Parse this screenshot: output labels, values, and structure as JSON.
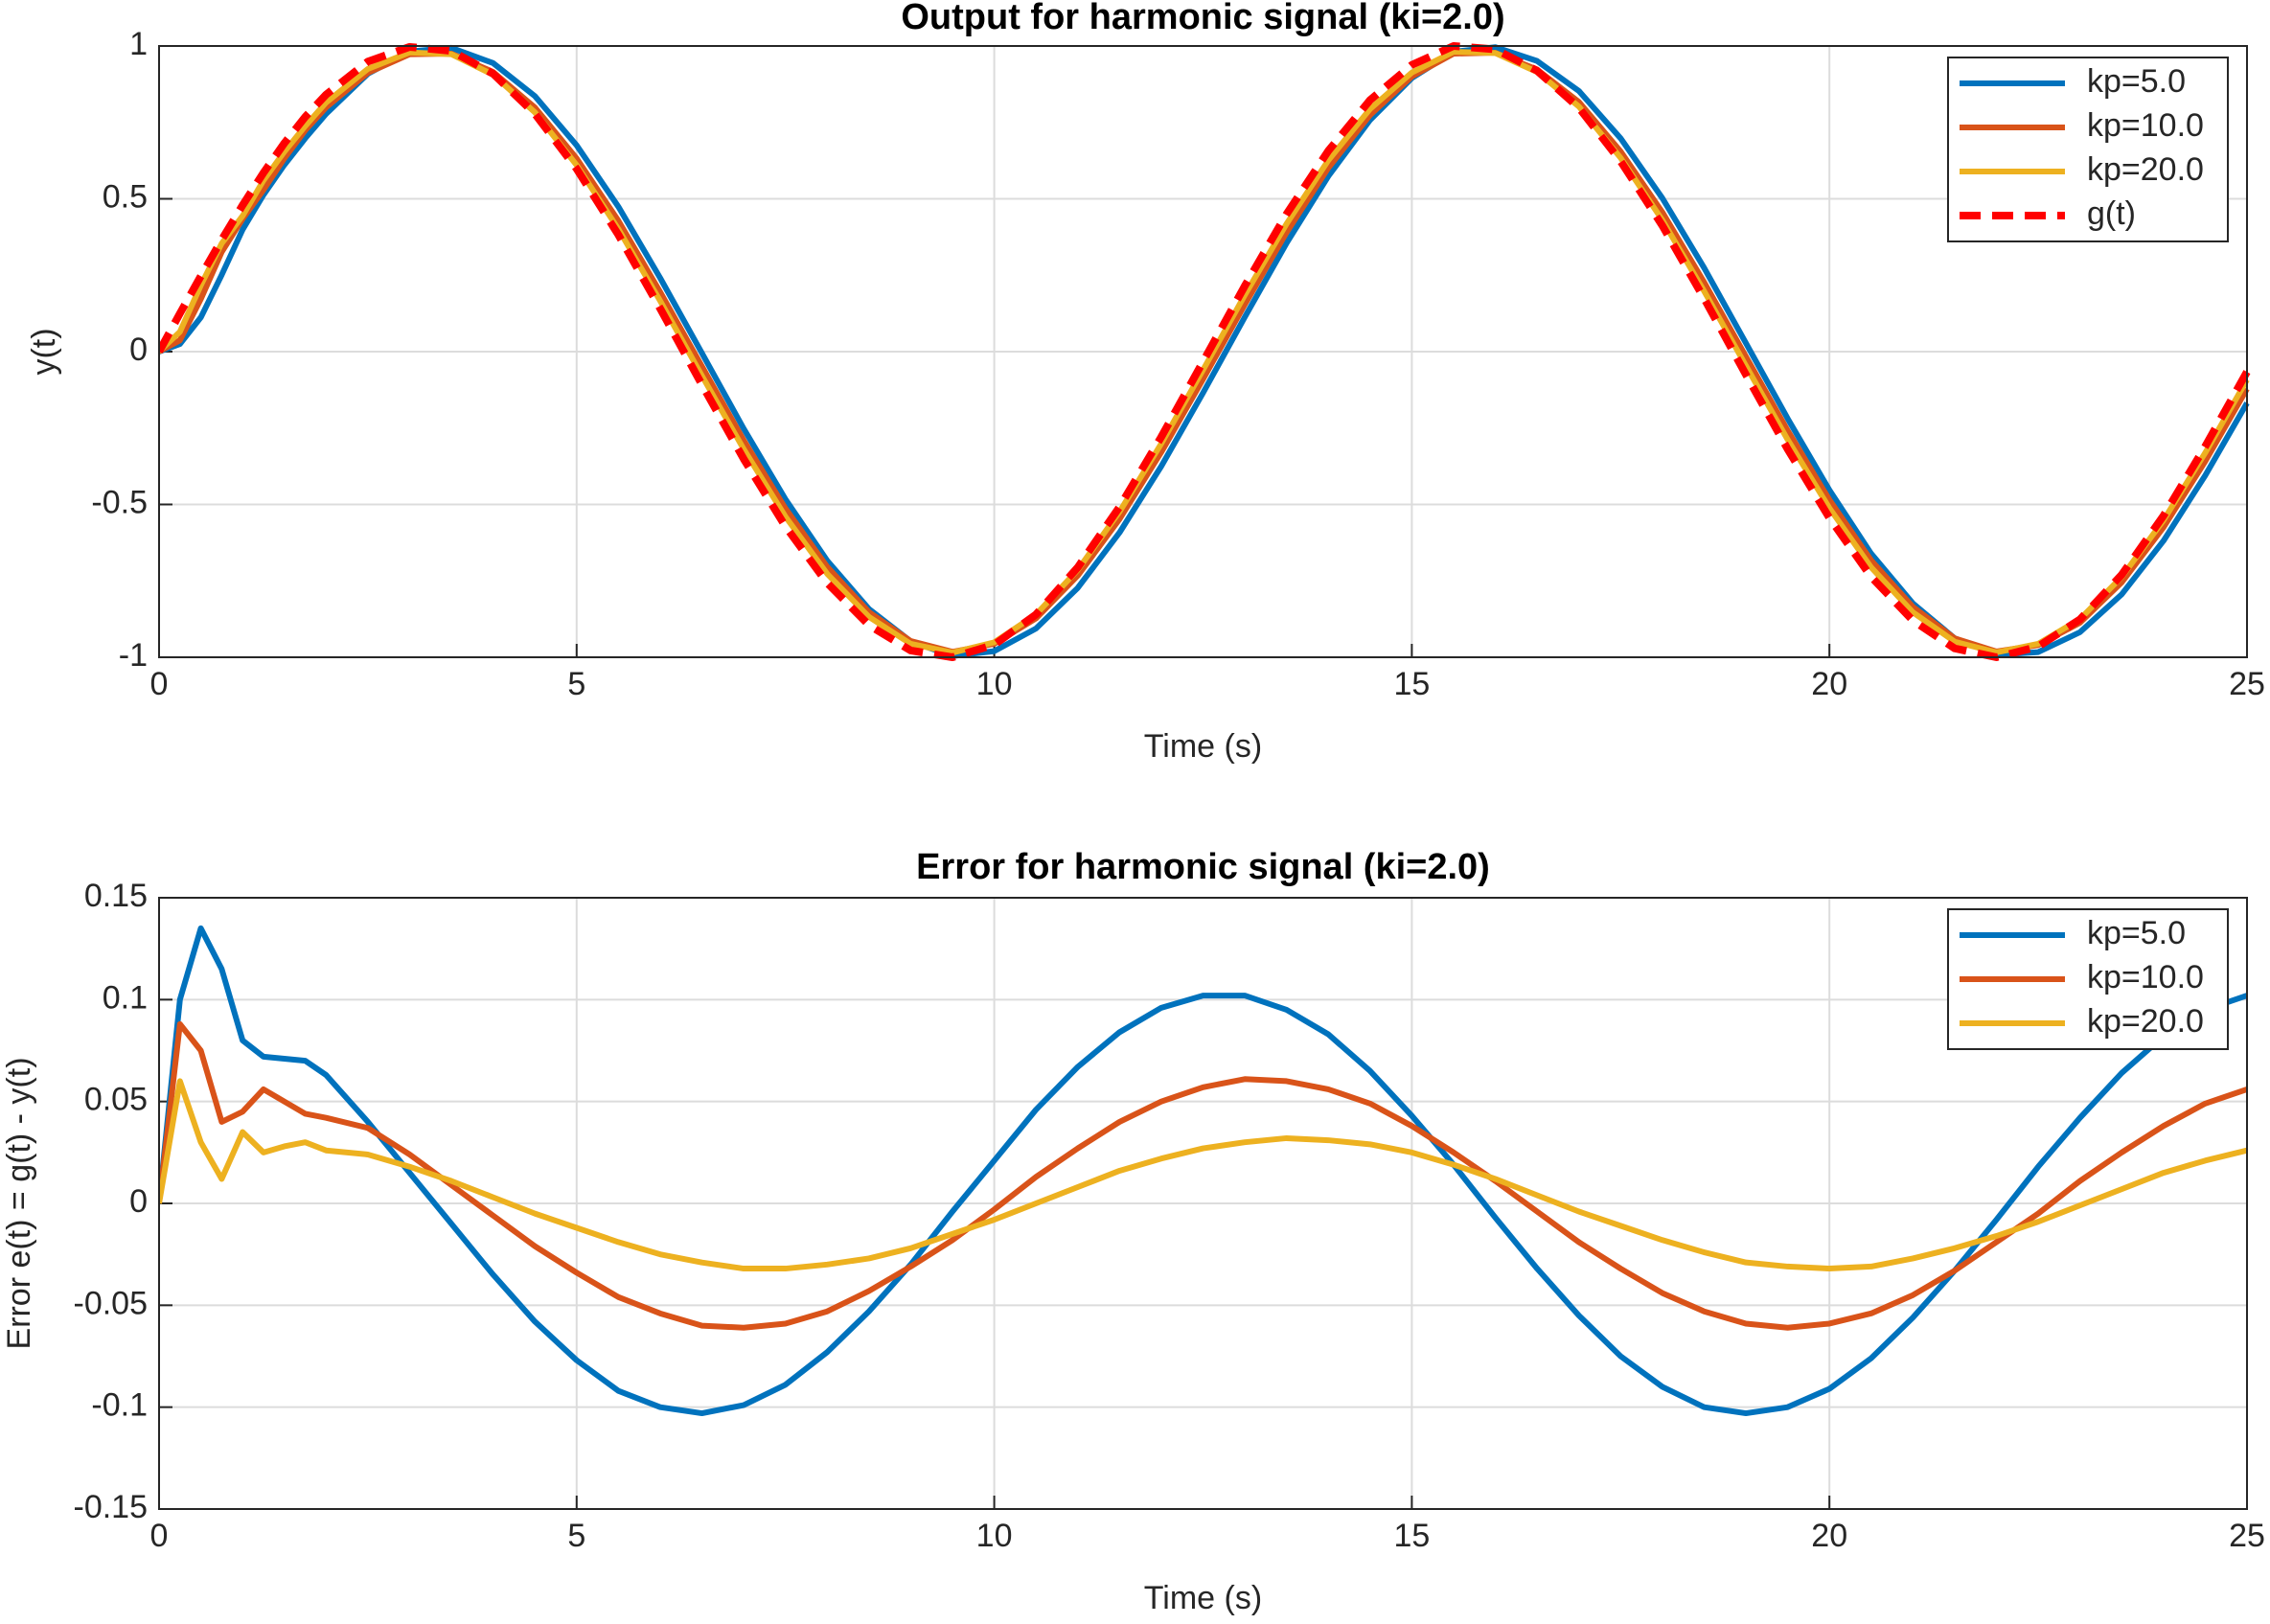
{
  "chart_data": [
    {
      "type": "line",
      "title": "Output for harmonic signal (ki=2.0)",
      "xlabel": "Time (s)",
      "ylabel": "y(t)",
      "x": [
        0,
        0.25,
        0.5,
        0.75,
        1,
        1.25,
        1.5,
        1.75,
        2,
        2.5,
        3,
        3.5,
        4,
        4.5,
        5,
        5.5,
        6,
        6.5,
        7,
        7.5,
        8,
        8.5,
        9,
        9.5,
        10,
        10.5,
        11,
        11.5,
        12,
        12.5,
        13,
        13.5,
        14,
        14.5,
        15,
        15.5,
        16,
        16.5,
        17,
        17.5,
        18,
        18.5,
        19,
        19.5,
        20,
        20.5,
        21,
        21.5,
        22,
        22.5,
        23,
        23.5,
        24,
        24.5,
        25
      ],
      "series": [
        {
          "name": "kp=5.0",
          "color": "#0072BD",
          "line_style": "solid",
          "values": [
            0,
            0.025,
            0.112,
            0.251,
            0.399,
            0.513,
            0.611,
            0.698,
            0.778,
            0.909,
            0.982,
            0.994,
            0.944,
            0.836,
            0.675,
            0.474,
            0.241,
            -0.005,
            -0.252,
            -0.483,
            -0.684,
            -0.842,
            -0.948,
            -0.996,
            -0.98,
            -0.906,
            -0.773,
            -0.592,
            -0.375,
            -0.135,
            0.113,
            0.355,
            0.574,
            0.758,
            0.895,
            0.981,
            0.996,
            0.951,
            0.853,
            0.698,
            0.502,
            0.274,
            0.028,
            -0.219,
            -0.453,
            -0.661,
            -0.824,
            -0.938,
            -0.992,
            -0.983,
            -0.918,
            -0.794,
            -0.619,
            -0.405,
            -0.168
          ]
        },
        {
          "name": "kp=10.0",
          "color": "#D95319",
          "line_style": "solid",
          "values": [
            0,
            0.037,
            0.172,
            0.326,
            0.434,
            0.529,
            0.632,
            0.724,
            0.799,
            0.912,
            0.973,
            0.975,
            0.915,
            0.799,
            0.632,
            0.428,
            0.195,
            -0.048,
            -0.29,
            -0.513,
            -0.704,
            -0.852,
            -0.947,
            -0.982,
            -0.956,
            -0.873,
            -0.733,
            -0.548,
            -0.329,
            -0.09,
            0.154,
            0.39,
            0.601,
            0.774,
            0.9,
            0.975,
            0.978,
            0.923,
            0.817,
            0.655,
            0.456,
            0.227,
            -0.016,
            -0.258,
            -0.485,
            -0.683,
            -0.835,
            -0.938,
            -0.981,
            -0.96,
            -0.887,
            -0.755,
            -0.575,
            -0.359,
            -0.122
          ]
        },
        {
          "name": "kp=20.0",
          "color": "#EDB120",
          "line_style": "solid",
          "values": [
            0,
            0.065,
            0.217,
            0.354,
            0.444,
            0.56,
            0.654,
            0.738,
            0.815,
            0.925,
            0.979,
            0.973,
            0.906,
            0.783,
            0.61,
            0.401,
            0.166,
            -0.079,
            -0.319,
            -0.54,
            -0.727,
            -0.868,
            -0.956,
            -0.985,
            -0.951,
            -0.86,
            -0.714,
            -0.524,
            -0.301,
            -0.06,
            0.185,
            0.418,
            0.626,
            0.794,
            0.913,
            0.981,
            0.977,
            0.915,
            0.802,
            0.634,
            0.43,
            0.198,
            -0.046,
            -0.288,
            -0.512,
            -0.706,
            -0.853,
            -0.949,
            -0.984,
            -0.956,
            -0.875,
            -0.737,
            -0.552,
            -0.331,
            -0.092
          ]
        },
        {
          "name": "g(t)",
          "color": "#FF0000",
          "line_style": "dashed",
          "values": [
            0,
            0.125,
            0.247,
            0.366,
            0.479,
            0.585,
            0.682,
            0.768,
            0.841,
            0.949,
            0.997,
            0.984,
            0.909,
            0.778,
            0.598,
            0.382,
            0.141,
            -0.108,
            -0.351,
            -0.572,
            -0.757,
            -0.895,
            -0.978,
            -1,
            -0.959,
            -0.86,
            -0.706,
            -0.508,
            -0.279,
            -0.033,
            0.215,
            0.45,
            0.657,
            0.823,
            0.938,
            1,
            0.989,
            0.919,
            0.798,
            0.623,
            0.412,
            0.174,
            -0.075,
            -0.319,
            -0.544,
            -0.737,
            -0.88,
            -0.971,
            -1,
            -0.965,
            -0.876,
            -0.73,
            -0.537,
            -0.31,
            -0.066
          ]
        }
      ],
      "xlim": [
        0,
        25
      ],
      "xticks": [
        0,
        5,
        10,
        15,
        20,
        25
      ],
      "ylim": [
        -1,
        1
      ],
      "yticks": [
        -1,
        -0.5,
        0,
        0.5,
        1
      ],
      "grid": true,
      "legend": "northeast"
    },
    {
      "type": "line",
      "title": "Error for harmonic signal (ki=2.0)",
      "xlabel": "Time (s)",
      "ylabel": "Error e(t) = g(t) - y(t)",
      "x": [
        0,
        0.25,
        0.5,
        0.75,
        1,
        1.25,
        1.5,
        1.75,
        2,
        2.5,
        3,
        3.5,
        4,
        4.5,
        5,
        5.5,
        6,
        6.5,
        7,
        7.5,
        8,
        8.5,
        9,
        9.5,
        10,
        10.5,
        11,
        11.5,
        12,
        12.5,
        13,
        13.5,
        14,
        14.5,
        15,
        15.5,
        16,
        16.5,
        17,
        17.5,
        18,
        18.5,
        19,
        19.5,
        20,
        20.5,
        21,
        21.5,
        22,
        22.5,
        23,
        23.5,
        24,
        24.5,
        25
      ],
      "series": [
        {
          "name": "kp=5.0",
          "color": "#0072BD",
          "line_style": "solid",
          "values": [
            0,
            0.1,
            0.135,
            0.115,
            0.08,
            0.072,
            0.071,
            0.07,
            0.063,
            0.04,
            0.015,
            -0.01,
            -0.035,
            -0.058,
            -0.077,
            -0.092,
            -0.1,
            -0.103,
            -0.099,
            -0.089,
            -0.073,
            -0.053,
            -0.03,
            -0.004,
            0.021,
            0.046,
            0.067,
            0.084,
            0.096,
            0.102,
            0.102,
            0.095,
            0.083,
            0.065,
            0.043,
            0.019,
            -0.007,
            -0.032,
            -0.055,
            -0.075,
            -0.09,
            -0.1,
            -0.103,
            -0.1,
            -0.091,
            -0.076,
            -0.056,
            -0.033,
            -0.008,
            0.018,
            0.042,
            0.064,
            0.082,
            0.095,
            0.102
          ]
        },
        {
          "name": "kp=10.0",
          "color": "#D95319",
          "line_style": "solid",
          "values": [
            0,
            0.088,
            0.075,
            0.04,
            0.045,
            0.056,
            0.05,
            0.044,
            0.042,
            0.037,
            0.024,
            0.009,
            -0.006,
            -0.021,
            -0.034,
            -0.046,
            -0.054,
            -0.06,
            -0.061,
            -0.059,
            -0.053,
            -0.043,
            -0.031,
            -0.018,
            -0.003,
            0.013,
            0.027,
            0.04,
            0.05,
            0.057,
            0.061,
            0.06,
            0.056,
            0.049,
            0.038,
            0.025,
            0.011,
            -0.004,
            -0.019,
            -0.032,
            -0.044,
            -0.053,
            -0.059,
            -0.061,
            -0.059,
            -0.054,
            -0.045,
            -0.033,
            -0.019,
            -0.005,
            0.011,
            0.025,
            0.038,
            0.049,
            0.056
          ]
        },
        {
          "name": "kp=20.0",
          "color": "#EDB120",
          "line_style": "solid",
          "values": [
            0,
            0.06,
            0.03,
            0.012,
            0.035,
            0.025,
            0.028,
            0.03,
            0.026,
            0.024,
            0.018,
            0.011,
            0.003,
            -0.005,
            -0.012,
            -0.019,
            -0.025,
            -0.029,
            -0.032,
            -0.032,
            -0.03,
            -0.027,
            -0.022,
            -0.015,
            -0.008,
            0,
            0.008,
            0.016,
            0.022,
            0.027,
            0.03,
            0.032,
            0.031,
            0.029,
            0.025,
            0.019,
            0.012,
            0.004,
            -0.004,
            -0.011,
            -0.018,
            -0.024,
            -0.029,
            -0.031,
            -0.032,
            -0.031,
            -0.027,
            -0.022,
            -0.016,
            -0.009,
            -0.001,
            0.007,
            0.015,
            0.021,
            0.026
          ]
        }
      ],
      "xlim": [
        0,
        25
      ],
      "xticks": [
        0,
        5,
        10,
        15,
        20,
        25
      ],
      "ylim": [
        -0.15,
        0.15
      ],
      "yticks": [
        -0.15,
        -0.1,
        -0.05,
        0,
        0.05,
        0.1,
        0.15
      ],
      "grid": true,
      "legend": "northeast"
    }
  ]
}
